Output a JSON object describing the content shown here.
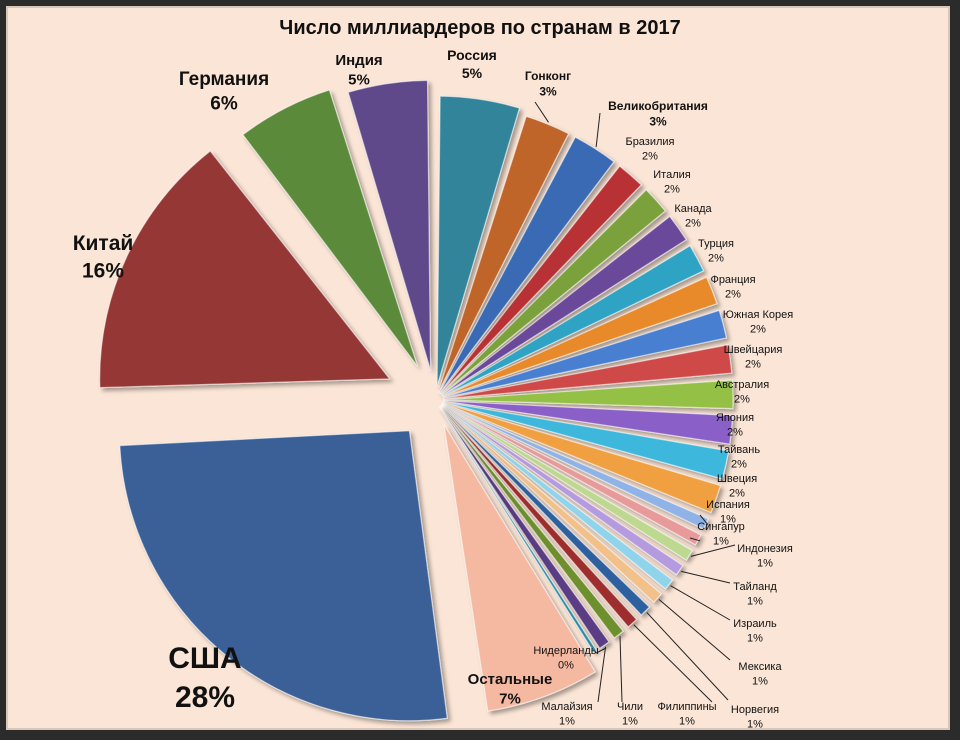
{
  "chart_data": {
    "type": "pie",
    "title": "Число миллиардеров по странам в 2017",
    "slices": [
      {
        "label": "Россия",
        "value": 5,
        "value_text": "5%",
        "color": "#31849b"
      },
      {
        "label": "Гонконг",
        "value": 3,
        "value_text": "3%",
        "color": "#c0652a"
      },
      {
        "label": "Великобритания",
        "value": 3,
        "value_text": "3%",
        "color": "#3b6bb5"
      },
      {
        "label": "Бразилия",
        "value": 2,
        "value_text": "2%",
        "color": "#b83234"
      },
      {
        "label": "Италия",
        "value": 2,
        "value_text": "2%",
        "color": "#7aa13a"
      },
      {
        "label": "Канада",
        "value": 2,
        "value_text": "2%",
        "color": "#6a4a9a"
      },
      {
        "label": "Турция",
        "value": 2,
        "value_text": "2%",
        "color": "#2fa3c4"
      },
      {
        "label": "Франция",
        "value": 2,
        "value_text": "2%",
        "color": "#e8892b"
      },
      {
        "label": "Южная Корея",
        "value": 2,
        "value_text": "2%",
        "color": "#4a7fd0"
      },
      {
        "label": "Швейцария",
        "value": 2,
        "value_text": "2%",
        "color": "#d04848"
      },
      {
        "label": "Австралия",
        "value": 2,
        "value_text": "2%",
        "color": "#94c145"
      },
      {
        "label": "Япония",
        "value": 2,
        "value_text": "2%",
        "color": "#8a5ec8"
      },
      {
        "label": "Тайвань",
        "value": 2,
        "value_text": "2%",
        "color": "#3cb8dc"
      },
      {
        "label": "Швеция",
        "value": 2,
        "value_text": "2%",
        "color": "#f0a040"
      },
      {
        "label": "Испания",
        "value": 1,
        "value_text": "1%",
        "color": "#8fb3e6"
      },
      {
        "label": "Сингапур",
        "value": 1,
        "value_text": "1%",
        "color": "#e89a9a"
      },
      {
        "label": "Индонезия",
        "value": 1,
        "value_text": "1%",
        "color": "#bcd98f"
      },
      {
        "label": "Тайланд",
        "value": 1,
        "value_text": "1%",
        "color": "#b49adf"
      },
      {
        "label": "Израиль",
        "value": 1,
        "value_text": "1%",
        "color": "#8fd4ea"
      },
      {
        "label": "Мексика",
        "value": 1,
        "value_text": "1%",
        "color": "#f2c089"
      },
      {
        "label": "Норвегия",
        "value": 1,
        "value_text": "1%",
        "color": "#2e5f9e"
      },
      {
        "label": "Филиппины",
        "value": 1,
        "value_text": "1%",
        "color": "#9e2e2e"
      },
      {
        "label": "Чили",
        "value": 1,
        "value_text": "1%",
        "color": "#6e8f2e"
      },
      {
        "label": "Малайзия",
        "value": 1,
        "value_text": "1%",
        "color": "#5a3e84"
      },
      {
        "label": "Нидерланды",
        "value": 0,
        "value_text": "0%",
        "color": "#2a8aa8"
      },
      {
        "label": "Остальные",
        "value": 7,
        "value_text": "7%",
        "color": "#f5b9a2"
      },
      {
        "label": "США",
        "value": 28,
        "value_text": "28%",
        "color": "#3a5f97"
      },
      {
        "label": "Китай",
        "value": 16,
        "value_text": "16%",
        "color": "#953735"
      },
      {
        "label": "Германия",
        "value": 6,
        "value_text": "6%",
        "color": "#5c8a3a"
      },
      {
        "label": "Индия",
        "value": 5,
        "value_text": "5%",
        "color": "#5f4a8b"
      }
    ],
    "legend": "none"
  }
}
